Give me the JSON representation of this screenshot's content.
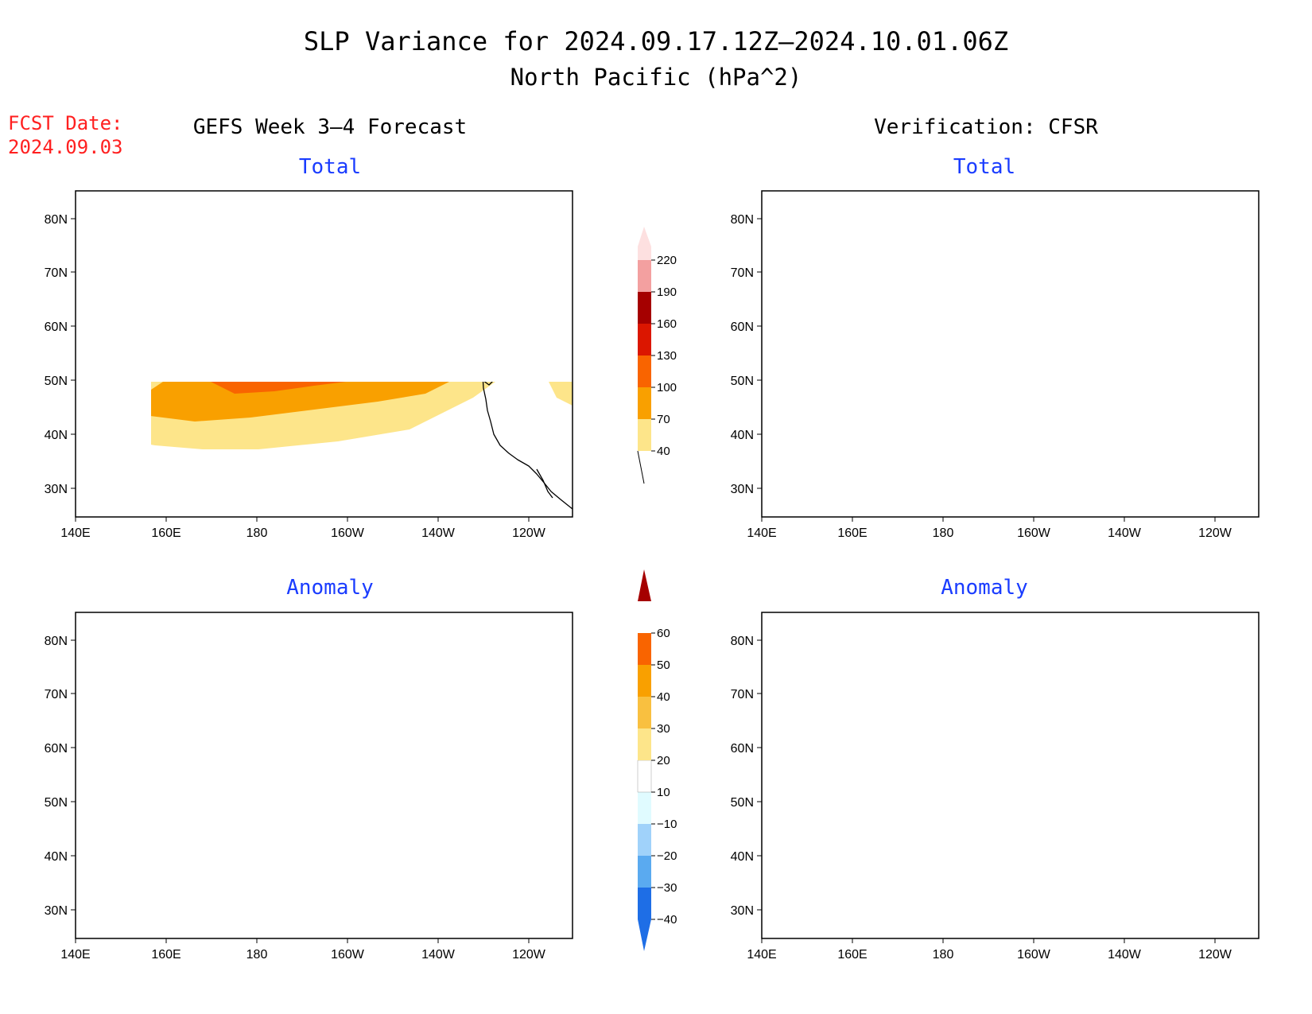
{
  "title_line1": "SLP Variance for 2024.09.17.12Z–2024.10.01.06Z",
  "title_line2": "North Pacific (hPa^2)",
  "fcst_label": "FCST Date:",
  "fcst_date": "2024.09.03",
  "left_header": "GEFS Week 3–4 Forecast",
  "right_header": "Verification: CFSR",
  "panels": {
    "tl": "Total",
    "tr": "Total",
    "bl": "Anomaly",
    "br": "Anomaly"
  },
  "lat_labels": [
    "80N",
    "70N",
    "60N",
    "50N",
    "40N",
    "30N"
  ],
  "lon_labels": [
    "140E",
    "160E",
    "180",
    "160W",
    "140W",
    "120W"
  ],
  "colors": {
    "t40": "#fde58a",
    "t70": "#f9a000",
    "t100": "#f96400",
    "t130": "#db1600",
    "t160": "#a50000",
    "t190": "#f3a0a0",
    "t220": "#fde0e0",
    "a10": "#fde58a",
    "a20": "#f9c040",
    "a30": "#f9a000",
    "a40": "#f96400",
    "a50": "#db1600",
    "a60": "#a50000",
    "n10": "#e0fbff",
    "n20": "#a0d2fa",
    "n30": "#5aaaf0",
    "n40": "#1e6ee6"
  },
  "colorbar_total": [
    "40",
    "70",
    "100",
    "130",
    "160",
    "190",
    "220"
  ],
  "colorbar_anom": [
    "−40",
    "−30",
    "−20",
    "−10",
    "10",
    "20",
    "30",
    "40",
    "50",
    "60"
  ]
}
